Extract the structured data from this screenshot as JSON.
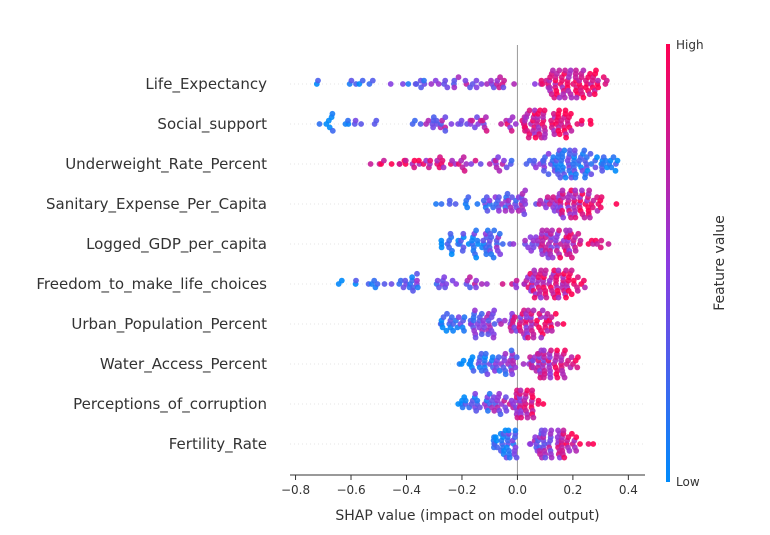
{
  "chart_data": {
    "type": "scatter",
    "subtype": "shap-beeswarm",
    "title": "",
    "xlabel": "SHAP value (impact on model output)",
    "ylabel": "",
    "xlim": [
      -0.82,
      0.46
    ],
    "xticks": [
      -0.8,
      -0.6,
      -0.4,
      -0.2,
      0.0,
      0.2,
      0.4
    ],
    "xtick_labels": [
      "−0.8",
      "−0.6",
      "−0.4",
      "−0.2",
      "0.0",
      "0.2",
      "0.4"
    ],
    "grid": false,
    "colorbar": {
      "title": "Feature value",
      "high_label": "High",
      "low_label": "Low",
      "low_color": "#008bfb",
      "high_color": "#ff0052"
    },
    "features": [
      {
        "name": "Life_Expectancy",
        "lo": -0.76,
        "hi": 0.37,
        "split": 0.02,
        "n": 150
      },
      {
        "name": "Social_support",
        "lo": -0.77,
        "hi": 0.29,
        "split": -0.1,
        "n": 150
      },
      {
        "name": "Underweight_Rate_Percent",
        "lo": -0.55,
        "hi": 0.41,
        "split": -0.02,
        "n": 150
      },
      {
        "name": "Sanitary_Expense_Per_Capita",
        "lo": -0.31,
        "hi": 0.38,
        "split": 0.03,
        "n": 150
      },
      {
        "name": "Logged_GDP_per_capita",
        "lo": -0.28,
        "hi": 0.33,
        "split": -0.05,
        "n": 150
      },
      {
        "name": "Freedom_to_make_life_choices",
        "lo": -0.65,
        "hi": 0.31,
        "split": -0.08,
        "n": 150
      },
      {
        "name": "Urban_Population_Percent",
        "lo": -0.32,
        "hi": 0.18,
        "split": -0.08,
        "n": 150
      },
      {
        "name": "Water_Access_Percent",
        "lo": -0.23,
        "hi": 0.25,
        "split": 0.0,
        "n": 150
      },
      {
        "name": "Perceptions_of_corruption",
        "lo": -0.22,
        "hi": 0.1,
        "split": -0.04,
        "n": 150
      },
      {
        "name": "Fertility_Rate",
        "lo": -0.1,
        "hi": 0.27,
        "split": 0.0,
        "n": 150
      }
    ]
  }
}
